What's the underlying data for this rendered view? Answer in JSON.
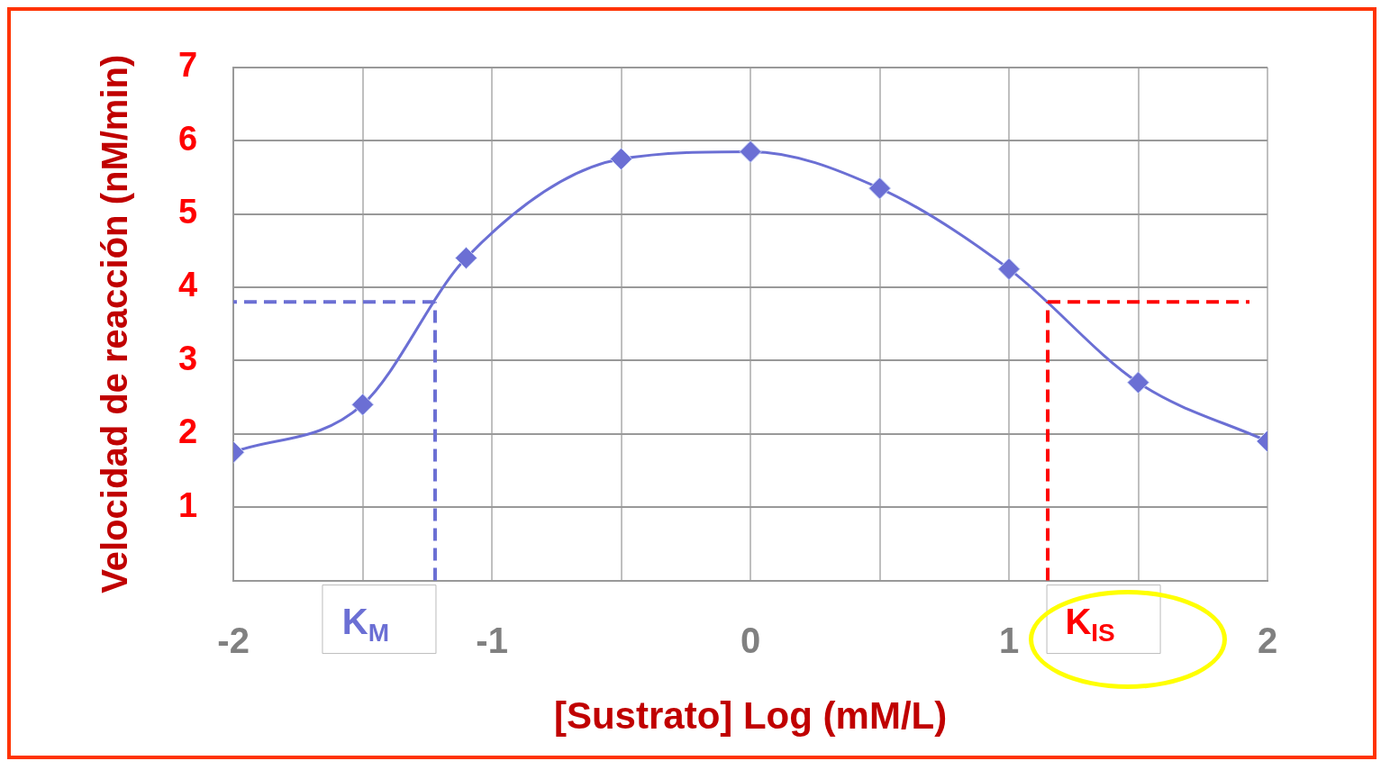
{
  "chart_data": {
    "type": "line",
    "xlabel": "[Sustrato] Log (mM/L)",
    "ylabel": "Velocidad de reacción (nM/min)",
    "x": [
      -2,
      -1.5,
      -1.1,
      -0.5,
      0,
      0.5,
      1,
      1.5,
      2
    ],
    "series": [
      {
        "color": "#6b6fd4",
        "values": [
          1.75,
          2.4,
          4.4,
          5.75,
          5.85,
          5.35,
          4.25,
          2.7,
          1.9
        ]
      }
    ],
    "xlim": [
      -2,
      2
    ],
    "xticks": [
      -2,
      {
        "value": -1.5,
        "label": null
      },
      -1,
      {
        "value": -0.5,
        "label": null
      },
      0,
      {
        "value": 0.5,
        "label": null
      },
      1,
      {
        "value": 1.5,
        "label": null
      },
      2
    ],
    "ylim": [
      0,
      7
    ],
    "yticks": [
      {
        "value": 0,
        "label": null
      },
      1,
      2,
      3,
      4,
      5,
      6,
      7
    ],
    "ref_lines": [
      {
        "axis": "x",
        "value": -1.22,
        "label": "K$_{M}$",
        "color": "#6b6fd4",
        "line_style": "dashed"
      },
      {
        "axis": "y",
        "value": 3.8,
        "color": "#6b6fd4",
        "line_style": "dashed"
      },
      {
        "axis": "x",
        "value": 1.15,
        "label": "K$_{IS}$",
        "color": "#ff0000",
        "line_style": "dashed"
      },
      {
        "axis": "y",
        "value": 3.8,
        "color": "#ff0000",
        "line_style": "dashed"
      }
    ],
    "grid": true,
    "legend": false,
    "marker": "diamond",
    "line_style": "solid"
  }
}
